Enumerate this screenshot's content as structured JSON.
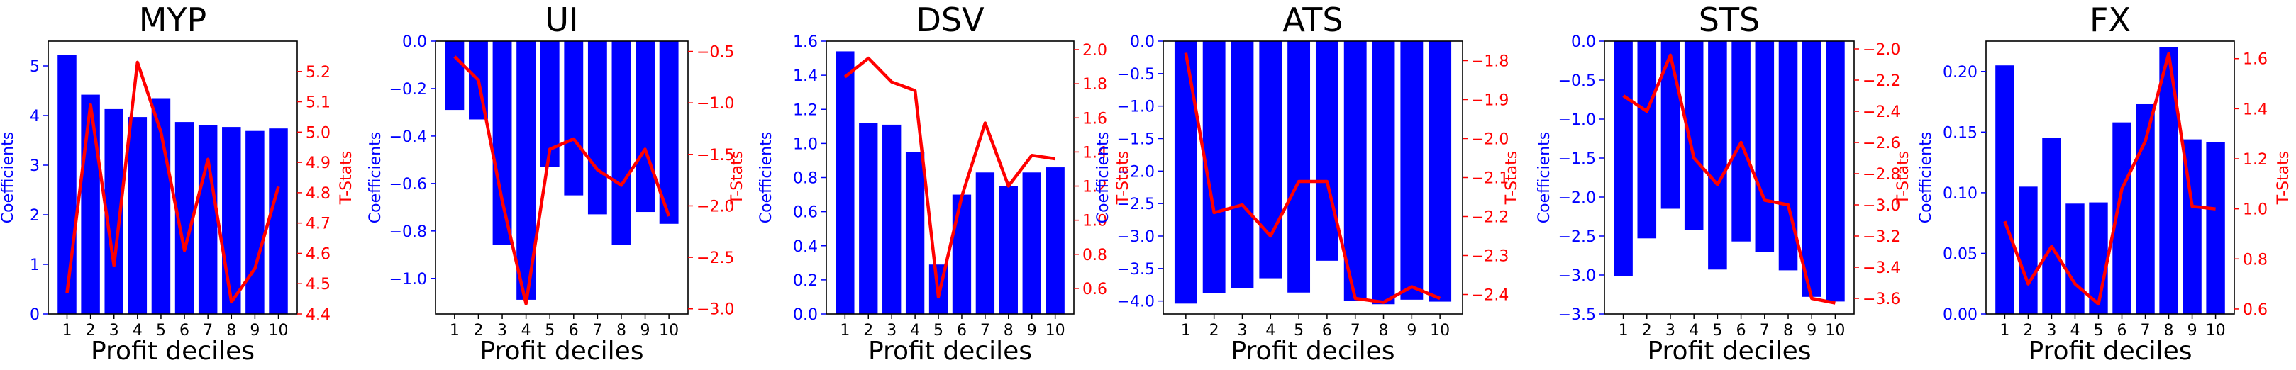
{
  "colors": {
    "bars": "#0000ff",
    "line": "#ff0000",
    "left_axis": "#0000ff",
    "right_axis": "#ff0000",
    "frame": "#000000"
  },
  "chart_data": [
    {
      "type": "bar",
      "title": "MYP",
      "xlabel": "Profit deciles",
      "ylabel": "Coefficients",
      "y2label": "T-Stats",
      "categories": [
        "1",
        "2",
        "3",
        "4",
        "5",
        "6",
        "7",
        "8",
        "9",
        "10"
      ],
      "ylim": [
        0,
        5.5
      ],
      "yticks": [
        "0",
        "1",
        "2",
        "3",
        "4",
        "5"
      ],
      "y2lim": [
        4.4,
        5.3
      ],
      "y2ticks": [
        "4.4",
        "4.5",
        "4.6",
        "4.7",
        "4.8",
        "4.9",
        "5.0",
        "5.1",
        "5.2"
      ],
      "series": [
        {
          "type": "bar",
          "axis": "left",
          "values": [
            5.22,
            4.42,
            4.13,
            3.97,
            4.35,
            3.87,
            3.81,
            3.77,
            3.69,
            3.74
          ]
        },
        {
          "type": "line",
          "axis": "right",
          "values": [
            4.47,
            5.09,
            4.56,
            5.23,
            5.0,
            4.61,
            4.91,
            4.44,
            4.55,
            4.82
          ]
        }
      ]
    },
    {
      "type": "bar",
      "title": "UI",
      "xlabel": "Profit deciles",
      "ylabel": "Coefficients",
      "y2label": "T-Stats",
      "categories": [
        "1",
        "2",
        "3",
        "4",
        "5",
        "6",
        "7",
        "8",
        "9",
        "10"
      ],
      "ylim": [
        -1.15,
        0
      ],
      "yticks": [
        "−1.0",
        "−0.8",
        "−0.6",
        "−0.4",
        "−0.2",
        "0.0"
      ],
      "y2lim": [
        -3.05,
        -0.4
      ],
      "y2ticks": [
        "−3.0",
        "−2.5",
        "−2.0",
        "−1.5",
        "−1.0",
        "−0.5"
      ],
      "series": [
        {
          "type": "bar",
          "axis": "left",
          "values": [
            -0.29,
            -0.33,
            -0.86,
            -1.09,
            -0.53,
            -0.65,
            -0.73,
            -0.86,
            -0.72,
            -0.77
          ]
        },
        {
          "type": "line",
          "axis": "right",
          "values": [
            -0.55,
            -0.78,
            -1.95,
            -2.95,
            -1.45,
            -1.35,
            -1.65,
            -1.8,
            -1.45,
            -2.1
          ]
        }
      ]
    },
    {
      "type": "bar",
      "title": "DSV",
      "xlabel": "Profit deciles",
      "ylabel": "Coefficients",
      "y2label": "T-Stats",
      "categories": [
        "1",
        "2",
        "3",
        "4",
        "5",
        "6",
        "7",
        "8",
        "9",
        "10"
      ],
      "ylim": [
        0,
        1.6
      ],
      "yticks": [
        "0.0",
        "0.2",
        "0.4",
        "0.6",
        "0.8",
        "1.0",
        "1.2",
        "1.4",
        "1.6"
      ],
      "y2lim": [
        0.45,
        2.05
      ],
      "y2ticks": [
        "0.6",
        "0.8",
        "1.0",
        "1.2",
        "1.4",
        "1.6",
        "1.8",
        "2.0"
      ],
      "series": [
        {
          "type": "bar",
          "axis": "left",
          "values": [
            1.54,
            1.12,
            1.11,
            0.95,
            0.29,
            0.7,
            0.83,
            0.75,
            0.83,
            0.86
          ]
        },
        {
          "type": "line",
          "axis": "right",
          "values": [
            1.84,
            1.95,
            1.81,
            1.76,
            0.55,
            1.14,
            1.57,
            1.2,
            1.38,
            1.36
          ]
        }
      ]
    },
    {
      "type": "bar",
      "title": "ATS",
      "xlabel": "Profit deciles",
      "ylabel": "Coefficients",
      "y2label": "T-Stats",
      "categories": [
        "1",
        "2",
        "3",
        "4",
        "5",
        "6",
        "7",
        "8",
        "9",
        "10"
      ],
      "ylim": [
        -4.2,
        0
      ],
      "yticks": [
        "−4.0",
        "−3.5",
        "−3.0",
        "−2.5",
        "−2.0",
        "−1.5",
        "−1.0",
        "−0.5",
        "0.0"
      ],
      "y2lim": [
        -2.45,
        -1.75
      ],
      "y2ticks": [
        "−2.4",
        "−2.3",
        "−2.2",
        "−2.1",
        "−2.0",
        "−1.9",
        "−1.8"
      ],
      "series": [
        {
          "type": "bar",
          "axis": "left",
          "values": [
            -4.04,
            -3.88,
            -3.8,
            -3.65,
            -3.87,
            -3.38,
            -4.0,
            -4.05,
            -3.98,
            -4.01
          ]
        },
        {
          "type": "line",
          "axis": "right",
          "values": [
            -1.78,
            -2.19,
            -2.17,
            -2.25,
            -2.11,
            -2.11,
            -2.41,
            -2.42,
            -2.38,
            -2.41
          ]
        }
      ]
    },
    {
      "type": "bar",
      "title": "STS",
      "xlabel": "Profit deciles",
      "ylabel": "Coefficients",
      "y2label": "T-Stats",
      "categories": [
        "1",
        "2",
        "3",
        "4",
        "5",
        "6",
        "7",
        "8",
        "9",
        "10"
      ],
      "ylim": [
        -3.5,
        0
      ],
      "yticks": [
        "−3.5",
        "−3.0",
        "−2.5",
        "−2.0",
        "−1.5",
        "−1.0",
        "−0.5",
        "0.0"
      ],
      "y2lim": [
        -3.7,
        -1.95
      ],
      "y2ticks": [
        "−3.6",
        "−3.4",
        "−3.2",
        "−3.0",
        "−2.8",
        "−2.6",
        "−2.4",
        "−2.2",
        "−2.0"
      ],
      "series": [
        {
          "type": "bar",
          "axis": "left",
          "values": [
            -3.01,
            -2.53,
            -2.15,
            -2.42,
            -2.93,
            -2.57,
            -2.7,
            -2.94,
            -3.28,
            -3.34
          ]
        },
        {
          "type": "line",
          "axis": "right",
          "values": [
            -2.3,
            -2.4,
            -2.04,
            -2.7,
            -2.87,
            -2.6,
            -2.97,
            -3.0,
            -3.6,
            -3.63
          ]
        }
      ]
    },
    {
      "type": "bar",
      "title": "FX",
      "xlabel": "Profit deciles",
      "ylabel": "Coefficients",
      "y2label": "T-Stats",
      "categories": [
        "1",
        "2",
        "3",
        "4",
        "5",
        "6",
        "7",
        "8",
        "9",
        "10"
      ],
      "ylim": [
        0,
        0.225
      ],
      "yticks": [
        "0.00",
        "0.05",
        "0.10",
        "0.15",
        "0.20"
      ],
      "y2lim": [
        0.58,
        1.67
      ],
      "y2ticks": [
        "0.6",
        "0.8",
        "1.0",
        "1.2",
        "1.4",
        "1.6"
      ],
      "series": [
        {
          "type": "bar",
          "axis": "left",
          "values": [
            0.205,
            0.105,
            0.145,
            0.091,
            0.092,
            0.158,
            0.173,
            0.22,
            0.144,
            0.142
          ]
        },
        {
          "type": "line",
          "axis": "right",
          "values": [
            0.95,
            0.7,
            0.85,
            0.7,
            0.62,
            1.08,
            1.27,
            1.62,
            1.01,
            1.0
          ]
        }
      ]
    }
  ]
}
